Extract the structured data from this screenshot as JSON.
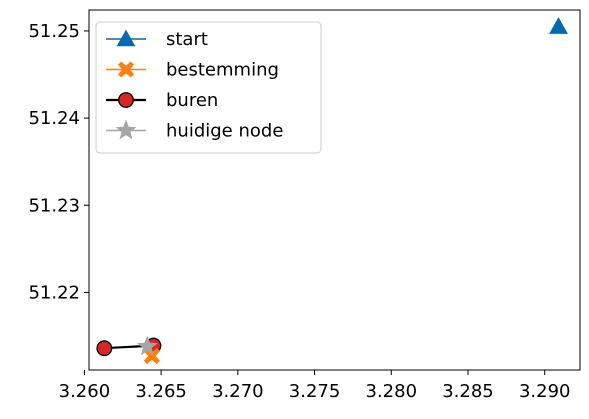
{
  "chart_data": {
    "type": "scatter",
    "title": "",
    "xlabel": "",
    "ylabel": "",
    "xlim": [
      3.2603,
      3.2923
    ],
    "ylim": [
      51.2111,
      51.2524
    ],
    "grid": false,
    "legend": "top-left",
    "x_ticks": [
      3.26,
      3.265,
      3.27,
      3.275,
      3.28,
      3.285,
      3.29
    ],
    "x_tick_labels": [
      "3.260",
      "3.265",
      "3.270",
      "3.275",
      "3.280",
      "3.285",
      "3.290"
    ],
    "y_ticks": [
      51.22,
      51.23,
      51.24,
      51.25
    ],
    "y_tick_labels": [
      "51.22",
      "51.23",
      "51.24",
      "51.25"
    ],
    "series": [
      {
        "name": "start",
        "marker": "triangle",
        "color": "#0868ac",
        "line": false,
        "points": [
          [
            3.2909,
            51.2505
          ]
        ]
      },
      {
        "name": "bestemming",
        "marker": "x-filled",
        "color": "#ff7f0e",
        "line": false,
        "points": [
          [
            3.2644,
            51.2127
          ]
        ]
      },
      {
        "name": "buren",
        "marker": "circle",
        "color": "#000000",
        "marker_fill": "#d62728",
        "line": true,
        "points": [
          [
            3.2613,
            51.2136
          ],
          [
            3.2645,
            51.2139
          ]
        ]
      },
      {
        "name": "huidige node",
        "marker": "star",
        "color": "#a6a6a6",
        "line": false,
        "points": [
          [
            3.2641,
            51.2138
          ]
        ]
      }
    ]
  }
}
